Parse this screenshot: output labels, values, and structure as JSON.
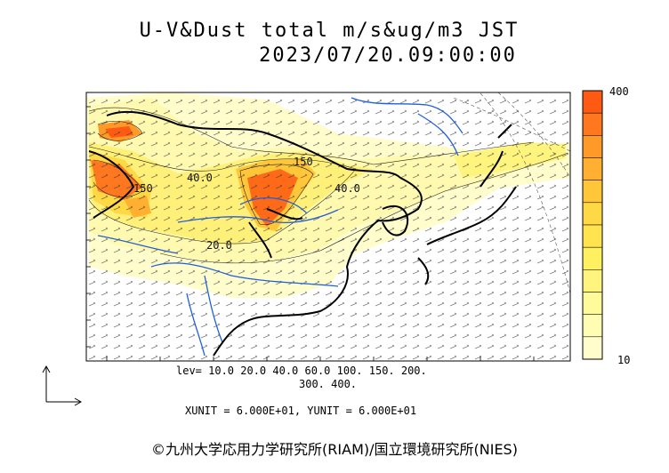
{
  "title_line1": "U-V&Dust total m/s&ug/m3 JST",
  "title_line2": "2023/07/20.09:00:00",
  "colorbar": {
    "max_label": "400",
    "min_label": "10",
    "colors": [
      "#ff5a14",
      "#ff7820",
      "#ff9a28",
      "#ffb030",
      "#ffc63a",
      "#ffd846",
      "#ffe450",
      "#fff060",
      "#fff57e",
      "#fffa9a",
      "#fffcb4",
      "#fffdcc"
    ]
  },
  "contour_labels": [
    "40.0",
    "150",
    "40.0",
    "150",
    "20.0"
  ],
  "legend": {
    "lev_line1": "lev= 10.0 20.0 40.0 60.0 100. 150. 200.",
    "lev_line2": "300. 400.",
    "units": "XUNIT = 6.000E+01, YUNIT = 6.000E+01"
  },
  "copyright": "©九州大学応用力学研究所(RIAM)/国立環境研究所(NIES)"
}
